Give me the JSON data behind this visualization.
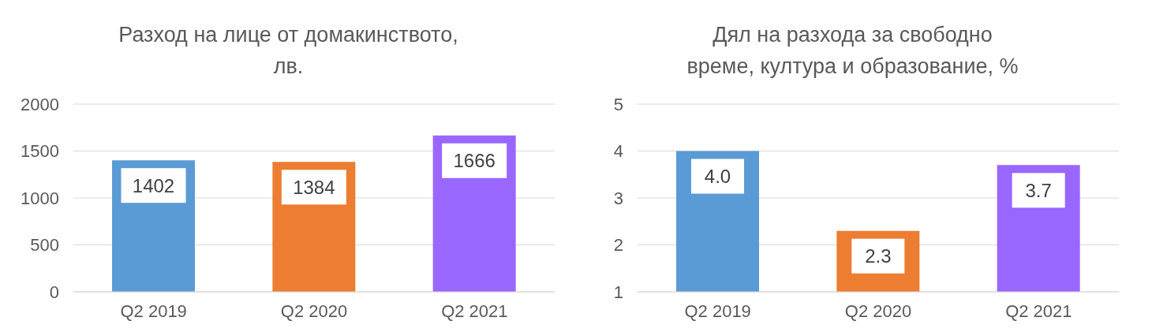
{
  "chart_data": [
    {
      "type": "bar",
      "title": "Разход на лице от домакинството, лв.",
      "categories": [
        "Q2 2019",
        "Q2 2020",
        "Q2 2021"
      ],
      "values": [
        1402,
        1384,
        1666
      ],
      "colors": [
        "#5b9bd5",
        "#ed7d31",
        "#9966ff"
      ],
      "ylim": [
        0,
        2000
      ],
      "yticks": [
        0,
        500,
        1000,
        1500,
        2000
      ],
      "grid": "y",
      "data_labels": true
    },
    {
      "type": "bar",
      "title": "Дял на разхода за свободно време, култура и образование, %",
      "categories": [
        "Q2 2019",
        "Q2 2020",
        "Q2 2021"
      ],
      "values": [
        4.0,
        2.3,
        3.7
      ],
      "value_labels": [
        "4.0",
        "2.3",
        "3.7"
      ],
      "colors": [
        "#5b9bd5",
        "#ed7d31",
        "#9966ff"
      ],
      "ylim": [
        1,
        5
      ],
      "yticks": [
        1,
        2,
        3,
        4,
        5
      ],
      "grid": "y"
    }
  ]
}
